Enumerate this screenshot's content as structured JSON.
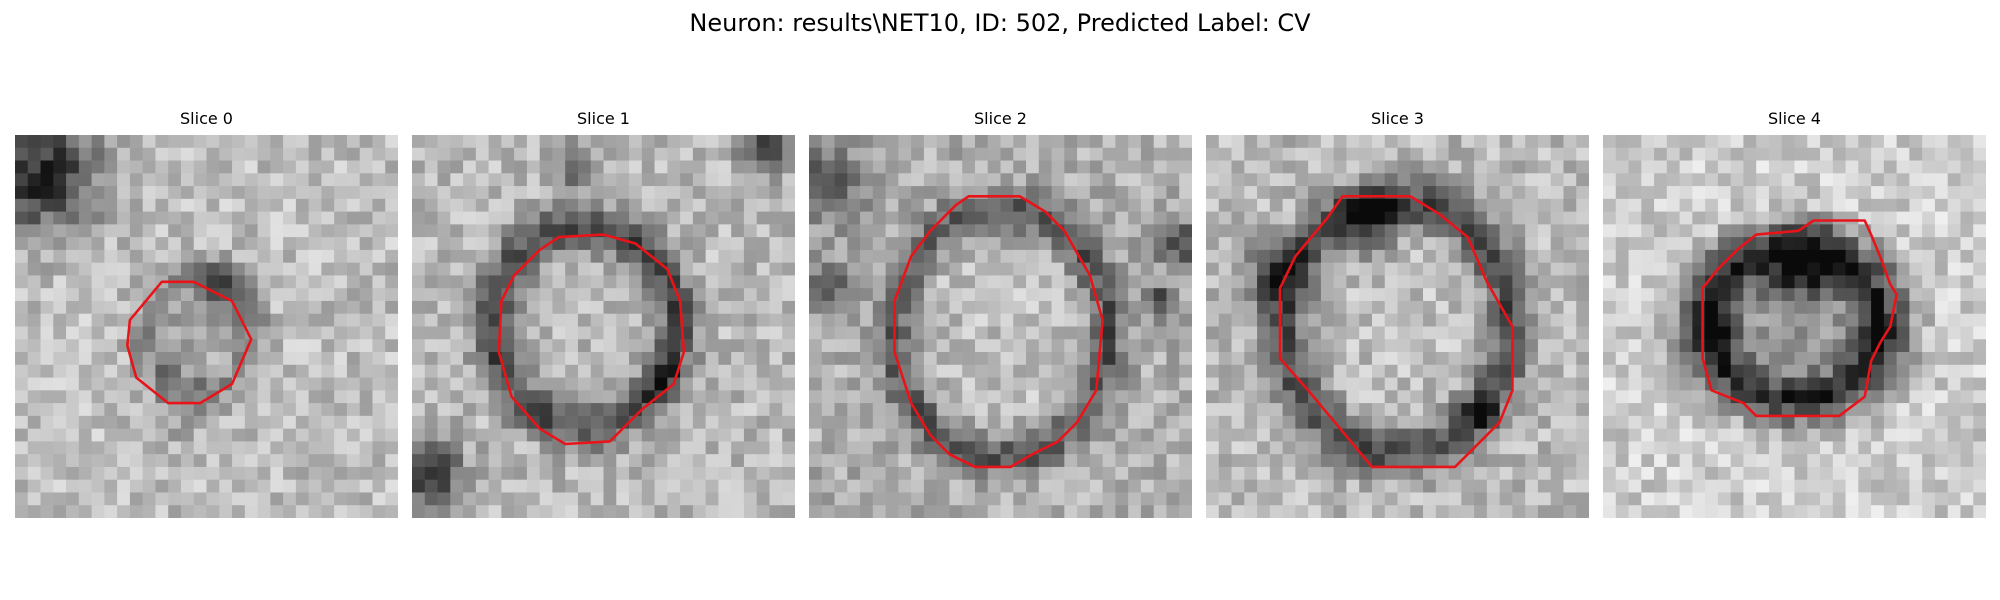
{
  "figure": {
    "title": "Neuron: results\\NET10, ID: 502, Predicted Label: CV"
  },
  "panels": [
    {
      "title": "Slice 0"
    },
    {
      "title": "Slice 1"
    },
    {
      "title": "Slice 2"
    },
    {
      "title": "Slice 3"
    },
    {
      "title": "Slice 4"
    }
  ],
  "colors": {
    "contour": "#e8141a",
    "background": "#ffffff",
    "colormap": "gray"
  }
}
